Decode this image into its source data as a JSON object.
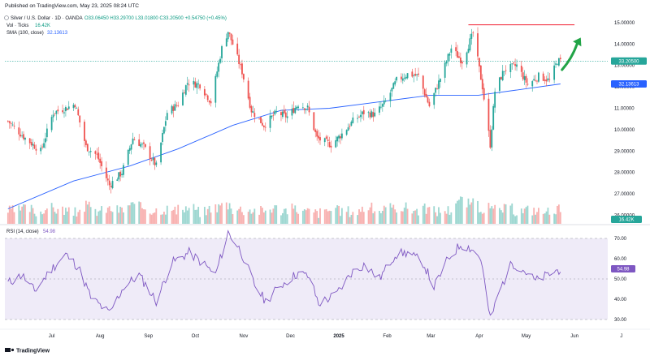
{
  "header": {
    "published": "Published on TradingView.com, May 23, 2025 08:24 UTC",
    "symbol_line": "Silver / U.S. Dollar · 1D · OANDA",
    "ohlc": "O33.06450 H33.29700 L33.01800 C33.20500 +0.54750 (+0.45%)",
    "vol_label": "Vol · Ticks",
    "vol_value": "16.42K",
    "sma_label": "SMA (100, close)",
    "sma_value": "32.13613"
  },
  "rsi_label": {
    "label": "RSI (14, close)",
    "value": "54.98"
  },
  "price_badges": {
    "last": "33.20500",
    "sma": "32.13613",
    "volume": "16.42K",
    "rsi": "54.98"
  },
  "footer": {
    "brand": "TradingView"
  },
  "colors": {
    "up": "#26a69a",
    "down": "#ef5350",
    "sma": "#2962ff",
    "rsi_line": "#7e57c2",
    "rsi_band": "#7e57c2",
    "resistance": "#f23645",
    "arrow": "#22a447",
    "last_badge": "#26a69a",
    "sma_badge": "#2962ff",
    "rsi_badge": "#7e57c2"
  },
  "chart_data": [
    {
      "type": "candlestick",
      "title": "Silver / U.S. Dollar · 1D · OANDA",
      "x_ticks": [
        "Jul",
        "Aug",
        "Sep",
        "Oct",
        "Nov",
        "Dec",
        "2025",
        "Feb",
        "Mar",
        "Apr",
        "May",
        "Jun",
        "J"
      ],
      "y_ticks": [
        "15.00000",
        "14.00000",
        "13.00000",
        "12.00000",
        "11.00000",
        "10.00000",
        "29.00000",
        "28.00000",
        "27.00000",
        "26.00000"
      ],
      "ylim": [
        25.6,
        35.3
      ],
      "close_series": [
        {
          "date": "2024-06-03",
          "close": 30.4
        },
        {
          "date": "2024-06-14",
          "close": 29.6
        },
        {
          "date": "2024-06-24",
          "close": 29.0
        },
        {
          "date": "2024-07-02",
          "close": 30.8
        },
        {
          "date": "2024-07-10",
          "close": 31.0
        },
        {
          "date": "2024-07-16",
          "close": 31.2
        },
        {
          "date": "2024-07-23",
          "close": 29.2
        },
        {
          "date": "2024-07-30",
          "close": 28.8
        },
        {
          "date": "2024-08-07",
          "close": 27.4
        },
        {
          "date": "2024-08-15",
          "close": 28.0
        },
        {
          "date": "2024-08-22",
          "close": 29.6
        },
        {
          "date": "2024-08-29",
          "close": 29.2
        },
        {
          "date": "2024-09-06",
          "close": 28.3
        },
        {
          "date": "2024-09-13",
          "close": 30.8
        },
        {
          "date": "2024-09-20",
          "close": 31.2
        },
        {
          "date": "2024-09-26",
          "close": 32.2
        },
        {
          "date": "2024-10-04",
          "close": 32.1
        },
        {
          "date": "2024-10-11",
          "close": 31.3
        },
        {
          "date": "2024-10-18",
          "close": 33.8
        },
        {
          "date": "2024-10-22",
          "close": 34.6
        },
        {
          "date": "2024-10-25",
          "close": 34.0
        },
        {
          "date": "2024-10-31",
          "close": 32.7
        },
        {
          "date": "2024-11-06",
          "close": 30.9
        },
        {
          "date": "2024-11-14",
          "close": 30.2
        },
        {
          "date": "2024-11-22",
          "close": 30.8
        },
        {
          "date": "2024-11-29",
          "close": 30.6
        },
        {
          "date": "2024-12-06",
          "close": 31.2
        },
        {
          "date": "2024-12-12",
          "close": 31.0
        },
        {
          "date": "2024-12-18",
          "close": 29.6
        },
        {
          "date": "2024-12-27",
          "close": 29.3
        },
        {
          "date": "2025-01-03",
          "close": 29.8
        },
        {
          "date": "2025-01-10",
          "close": 30.4
        },
        {
          "date": "2025-01-17",
          "close": 30.8
        },
        {
          "date": "2025-01-24",
          "close": 30.7
        },
        {
          "date": "2025-01-31",
          "close": 31.3
        },
        {
          "date": "2025-02-07",
          "close": 32.3
        },
        {
          "date": "2025-02-14",
          "close": 32.6
        },
        {
          "date": "2025-02-21",
          "close": 32.5
        },
        {
          "date": "2025-02-28",
          "close": 31.1
        },
        {
          "date": "2025-03-07",
          "close": 32.4
        },
        {
          "date": "2025-03-14",
          "close": 33.8
        },
        {
          "date": "2025-03-21",
          "close": 33.2
        },
        {
          "date": "2025-03-28",
          "close": 34.5
        },
        {
          "date": "2025-04-03",
          "close": 32.0
        },
        {
          "date": "2025-04-08",
          "close": 29.3
        },
        {
          "date": "2025-04-11",
          "close": 31.8
        },
        {
          "date": "2025-04-17",
          "close": 32.8
        },
        {
          "date": "2025-04-25",
          "close": 33.0
        },
        {
          "date": "2025-05-02",
          "close": 32.1
        },
        {
          "date": "2025-05-09",
          "close": 32.5
        },
        {
          "date": "2025-05-16",
          "close": 32.3
        },
        {
          "date": "2025-05-21",
          "close": 33.2
        },
        {
          "date": "2025-05-23",
          "close": 33.2
        }
      ],
      "sma_100": [
        {
          "date": "2024-06-03",
          "value": 26.3
        },
        {
          "date": "2024-07-15",
          "value": 27.6
        },
        {
          "date": "2024-08-20",
          "value": 28.3
        },
        {
          "date": "2024-09-20",
          "value": 29.1
        },
        {
          "date": "2024-10-25",
          "value": 30.2
        },
        {
          "date": "2024-11-25",
          "value": 30.9
        },
        {
          "date": "2024-12-26",
          "value": 31.0
        },
        {
          "date": "2025-01-27",
          "value": 31.3
        },
        {
          "date": "2025-02-28",
          "value": 31.6
        },
        {
          "date": "2025-03-31",
          "value": 31.6
        },
        {
          "date": "2025-04-30",
          "value": 31.9
        },
        {
          "date": "2025-05-23",
          "value": 32.13613
        }
      ],
      "annotations": [
        {
          "type": "horizontal_line",
          "from": "2025-03-25",
          "to": "2025-06-01",
          "price": 34.9
        },
        {
          "type": "arrow",
          "from": {
            "date": "2025-05-24",
            "price": 32.8
          },
          "to": {
            "date": "2025-06-05",
            "price": 34.3
          }
        }
      ]
    },
    {
      "type": "bar",
      "title": "Vol · Ticks",
      "last_value": "16.42K",
      "relative_levels": [
        0.4,
        0.5,
        0.35,
        0.55,
        0.45,
        0.3,
        0.65,
        0.4,
        0.5,
        0.45,
        0.7,
        0.6,
        0.45,
        0.5,
        0.4,
        0.55,
        0.35,
        0.6,
        0.75,
        0.5,
        0.45,
        0.4,
        0.55,
        0.45,
        0.5,
        0.35,
        0.3,
        0.45,
        0.4,
        0.35,
        0.55,
        0.45,
        0.5,
        0.6,
        0.45,
        0.5,
        0.4,
        0.45,
        1.0,
        0.8,
        0.55,
        0.45,
        0.5,
        0.4,
        0.45,
        0.35,
        0.5
      ]
    },
    {
      "type": "line",
      "title": "RSI (14, close)",
      "y_ticks": [
        "70.00",
        "60.00",
        "50.00",
        "40.00",
        "30.00"
      ],
      "ylim": [
        26,
        76
      ],
      "band": [
        30,
        70
      ],
      "series": [
        {
          "date": "2024-06-03",
          "value": 48
        },
        {
          "date": "2024-06-12",
          "value": 52
        },
        {
          "date": "2024-06-20",
          "value": 44
        },
        {
          "date": "2024-07-01",
          "value": 55
        },
        {
          "date": "2024-07-10",
          "value": 62
        },
        {
          "date": "2024-07-18",
          "value": 56
        },
        {
          "date": "2024-07-26",
          "value": 41
        },
        {
          "date": "2024-08-07",
          "value": 33
        },
        {
          "date": "2024-08-16",
          "value": 46
        },
        {
          "date": "2024-08-26",
          "value": 52
        },
        {
          "date": "2024-09-06",
          "value": 39
        },
        {
          "date": "2024-09-16",
          "value": 58
        },
        {
          "date": "2024-09-27",
          "value": 63
        },
        {
          "date": "2024-10-07",
          "value": 57
        },
        {
          "date": "2024-10-14",
          "value": 52
        },
        {
          "date": "2024-10-22",
          "value": 73
        },
        {
          "date": "2024-10-30",
          "value": 64
        },
        {
          "date": "2024-11-08",
          "value": 47
        },
        {
          "date": "2024-11-15",
          "value": 39
        },
        {
          "date": "2024-11-25",
          "value": 47
        },
        {
          "date": "2024-12-06",
          "value": 53
        },
        {
          "date": "2024-12-13",
          "value": 51
        },
        {
          "date": "2024-12-19",
          "value": 38
        },
        {
          "date": "2024-12-30",
          "value": 42
        },
        {
          "date": "2025-01-09",
          "value": 53
        },
        {
          "date": "2025-01-17",
          "value": 57
        },
        {
          "date": "2025-01-27",
          "value": 50
        },
        {
          "date": "2025-02-06",
          "value": 62
        },
        {
          "date": "2025-02-14",
          "value": 63
        },
        {
          "date": "2025-02-24",
          "value": 58
        },
        {
          "date": "2025-03-03",
          "value": 46
        },
        {
          "date": "2025-03-12",
          "value": 60
        },
        {
          "date": "2025-03-20",
          "value": 67
        },
        {
          "date": "2025-03-27",
          "value": 65
        },
        {
          "date": "2025-04-02",
          "value": 60
        },
        {
          "date": "2025-04-08",
          "value": 30
        },
        {
          "date": "2025-04-15",
          "value": 46
        },
        {
          "date": "2025-04-22",
          "value": 58
        },
        {
          "date": "2025-04-30",
          "value": 54
        },
        {
          "date": "2025-05-07",
          "value": 49
        },
        {
          "date": "2025-05-15",
          "value": 52
        },
        {
          "date": "2025-05-23",
          "value": 54.98
        }
      ]
    }
  ]
}
